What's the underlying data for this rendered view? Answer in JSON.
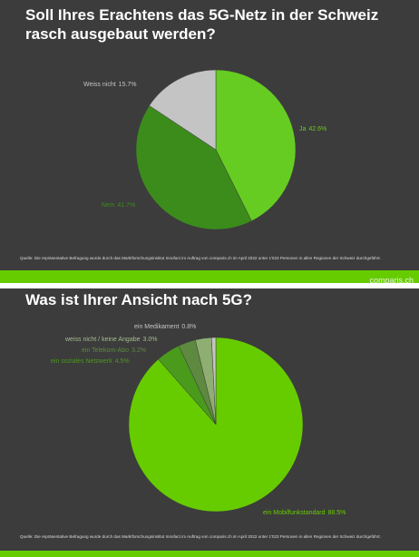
{
  "chart_data": [
    {
      "type": "pie",
      "title": "Soll Ihres Erachtens das 5G-Netz in der Schweiz rasch ausgebaut werden?",
      "categories": [
        "Ja",
        "Nein",
        "Weiss nicht"
      ],
      "values": [
        42.6,
        41.7,
        15.7
      ],
      "value_labels": [
        "42.6%",
        "41.7%",
        "15.7%"
      ],
      "colors": [
        "#66cc22",
        "#3c8c1c",
        "#c4c4c4"
      ],
      "source": "Quelle: Die repräsentative Befragung wurde durch das Marktforschungsinstitut Innofact im Auftrag von comparis.ch im April 2022 unter 1'023 Personen in allen Regionen der Schweiz durchgeführt.",
      "footer": "comparis.ch"
    },
    {
      "type": "pie",
      "title": "Was ist Ihrer Ansicht nach 5G?",
      "categories": [
        "ein Mobilfunkstandard",
        "ein soziales Netzwerk",
        "ein Telekom-Abo",
        "weiss nicht / keine Angabe",
        "ein Medikament"
      ],
      "values": [
        88.5,
        4.5,
        3.2,
        3.0,
        0.8
      ],
      "value_labels": [
        "88.5%",
        "4.5%",
        "3.2%",
        "3.0%",
        "0.8%"
      ],
      "colors": [
        "#66cc00",
        "#4a9a1c",
        "#5e8a40",
        "#8fae72",
        "#c4c4c4"
      ],
      "source": "Quelle: Die repräsentative Befragung wurde durch das Marktforschungsinstitut Innofact im Auftrag von comparis.ch im April 2022 unter 1'023 Personen in allen Regionen der Schweiz durchgeführt."
    }
  ]
}
